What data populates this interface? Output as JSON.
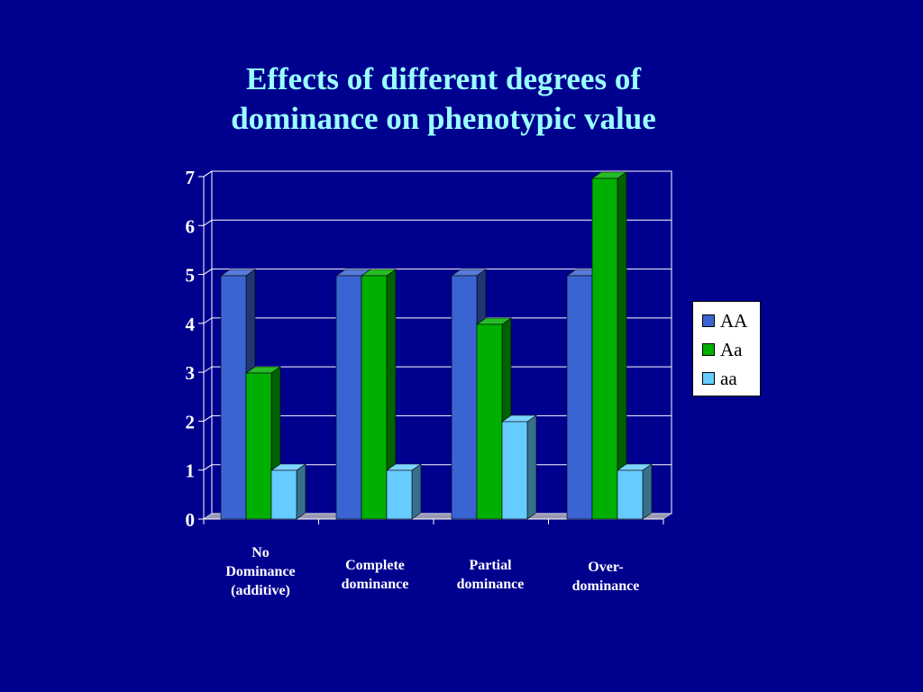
{
  "title_lines": [
    "Effects of different degrees of",
    "dominance on phenotypic value"
  ],
  "colors": {
    "background": "#00008f",
    "title": "#99ffff",
    "AA": "#3a64d2",
    "Aa": "#00b000",
    "aa": "#66ccff",
    "floor": "#9999b3"
  },
  "chart_data": {
    "type": "bar",
    "categories": [
      [
        "No",
        "Dominance",
        "(additive)"
      ],
      [
        "Complete",
        "dominance"
      ],
      [
        "Partial",
        "dominance"
      ],
      [
        "Over-",
        "dominance"
      ]
    ],
    "series": [
      {
        "name": "AA",
        "values": [
          5,
          5,
          5,
          5
        ]
      },
      {
        "name": "Aa",
        "values": [
          3,
          5,
          4,
          7
        ]
      },
      {
        "name": "aa",
        "values": [
          1,
          1,
          2,
          1
        ]
      }
    ],
    "title": "Effects of different degrees of dominance on phenotypic value",
    "xlabel": "",
    "ylabel": "",
    "ylim": [
      0,
      7
    ],
    "yticks": [
      "0",
      "1",
      "2",
      "3",
      "4",
      "5",
      "6",
      "7"
    ],
    "grid": true,
    "legend_position": "right",
    "style": "3d-clustered-column"
  }
}
